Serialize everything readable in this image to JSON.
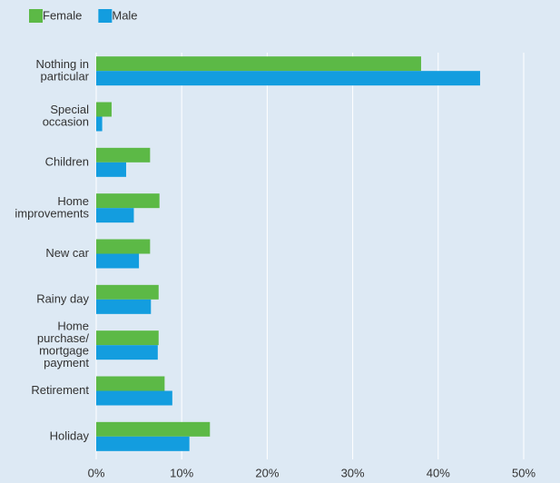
{
  "chart_data": {
    "type": "bar",
    "orientation": "horizontal",
    "categories": [
      [
        "Nothing in",
        "particular"
      ],
      [
        "Special",
        "occasion"
      ],
      [
        "Children"
      ],
      [
        "Home",
        "improvements"
      ],
      [
        "New car"
      ],
      [
        "Rainy day"
      ],
      [
        "Home",
        "purchase/",
        "mortgage",
        "payment"
      ],
      [
        "Retirement"
      ],
      [
        "Holiday"
      ]
    ],
    "series": [
      {
        "name": "Female",
        "color": "#5cb946",
        "values": [
          38.0,
          1.8,
          6.3,
          7.4,
          6.3,
          7.3,
          7.3,
          8.0,
          13.3
        ]
      },
      {
        "name": "Male",
        "color": "#139ddf",
        "values": [
          44.9,
          0.7,
          3.5,
          4.4,
          5.0,
          6.4,
          7.2,
          8.9,
          10.9
        ]
      }
    ],
    "xlim": [
      0,
      50
    ],
    "xticks": [
      {
        "value": 0,
        "label": "0%"
      },
      {
        "value": 10,
        "label": "10%"
      },
      {
        "value": 20,
        "label": "20%"
      },
      {
        "value": 30,
        "label": "30%"
      },
      {
        "value": 40,
        "label": "40%"
      },
      {
        "value": 50,
        "label": "50%"
      }
    ],
    "grid": true
  }
}
